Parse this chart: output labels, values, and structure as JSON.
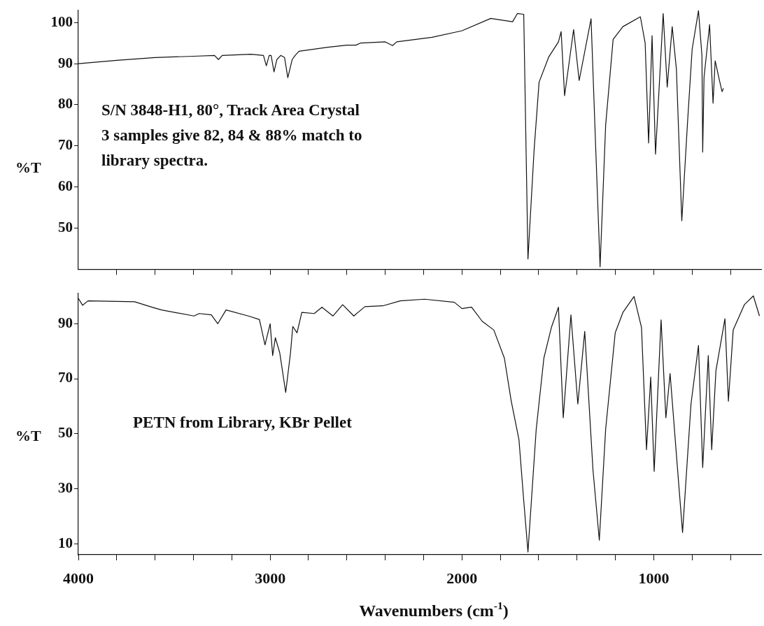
{
  "chart_data": [
    {
      "type": "line",
      "ylabel": "%T",
      "tick_labels": "y",
      "annotations": [
        "S/N 3848-H1, 80°, Track Area Crystal\n3 samples give 82, 84 & 88% match to\nlibrary spectra."
      ],
      "xlim": [
        4000,
        440
      ],
      "ylim": [
        40,
        103
      ],
      "xticks": [
        {
          "value": 3800,
          "label": null
        },
        {
          "value": 3600,
          "label": null
        },
        {
          "value": 3400,
          "label": null
        },
        {
          "value": 3200,
          "label": null
        },
        {
          "value": 3000,
          "label": null
        },
        {
          "value": 2800,
          "label": null
        },
        {
          "value": 2600,
          "label": null
        },
        {
          "value": 2400,
          "label": null
        },
        {
          "value": 2200,
          "label": null
        },
        {
          "value": 2000,
          "label": null
        },
        {
          "value": 1800,
          "label": null
        },
        {
          "value": 1600,
          "label": null
        },
        {
          "value": 1400,
          "label": null
        },
        {
          "value": 1200,
          "label": null
        },
        {
          "value": 1000,
          "label": null
        },
        {
          "value": 800,
          "label": null
        },
        {
          "value": 600,
          "label": null
        }
      ],
      "yticks": [
        50,
        60,
        70,
        80,
        90,
        100
      ],
      "series": [
        {
          "color": "#111111",
          "x": [
            4000,
            3800,
            3600,
            3400,
            3290,
            3270,
            3250,
            3100,
            3035,
            3020,
            3005,
            2995,
            2980,
            2965,
            2945,
            2925,
            2908,
            2885,
            2870,
            2850,
            2700,
            2600,
            2553,
            2530,
            2400,
            2362,
            2340,
            2156,
            2000,
            1850,
            1736,
            1711,
            1678,
            1656,
            1624,
            1598,
            1548,
            1497,
            1483,
            1465,
            1418,
            1389,
            1327,
            1302,
            1280,
            1251,
            1212,
            1161,
            1070,
            1045,
            1027,
            1009,
            991,
            951,
            930,
            904,
            882,
            854,
            825,
            800,
            767,
            749,
            745,
            738,
            709,
            691,
            680,
            658,
            644,
            637
          ],
          "values": [
            90,
            90.8,
            91.5,
            91.8,
            92,
            91,
            92,
            92.3,
            92,
            89.5,
            92,
            92,
            88,
            91,
            92,
            91.5,
            86.6,
            91,
            92,
            93,
            94,
            94.5,
            94.5,
            95,
            95.3,
            94.4,
            95.3,
            96.4,
            98,
            101,
            100.2,
            102.2,
            102,
            42.5,
            69,
            85.5,
            91.6,
            95.3,
            97.8,
            82.2,
            98.3,
            85.9,
            100.9,
            68.5,
            40.6,
            75,
            95.9,
            99,
            101.4,
            95,
            70.7,
            96.8,
            68,
            102.2,
            84.3,
            99,
            88.6,
            51.8,
            75,
            93.5,
            102.9,
            92,
            68.5,
            86.7,
            99.5,
            80.4,
            90.7,
            86,
            83.2,
            84
          ]
        }
      ]
    },
    {
      "type": "line",
      "ylabel": "%T",
      "xlabel": "Wavenumbers (cm$^{-1}$)",
      "annotations": [
        "PETN from Library, KBr Pellet"
      ],
      "xlim": [
        4000,
        440
      ],
      "ylim": [
        6,
        101
      ],
      "xticks": [
        4000,
        {
          "value": 3800,
          "label": null
        },
        {
          "value": 3600,
          "label": null
        },
        {
          "value": 3400,
          "label": null
        },
        {
          "value": 3200,
          "label": null
        },
        3000,
        {
          "value": 2800,
          "label": null
        },
        {
          "value": 2600,
          "label": null
        },
        {
          "value": 2400,
          "label": null
        },
        {
          "value": 2200,
          "label": null
        },
        2000,
        {
          "value": 1800,
          "label": null
        },
        {
          "value": 1600,
          "label": null
        },
        {
          "value": 1400,
          "label": null
        },
        {
          "value": 1200,
          "label": null
        },
        1000,
        {
          "value": 800,
          "label": null
        },
        {
          "value": 600,
          "label": null
        }
      ],
      "yticks": [
        10,
        30,
        50,
        70,
        90
      ],
      "series": [
        {
          "color": "#111111",
          "x": [
            4000,
            3978,
            3950,
            3800,
            3707,
            3617,
            3566,
            3397,
            3370,
            3307,
            3273,
            3230,
            3114,
            3056,
            3027,
            3000,
            2987,
            2973,
            2950,
            2919,
            2894,
            2882,
            2860,
            2835,
            2770,
            2730,
            2673,
            2622,
            2564,
            2506,
            2412,
            2322,
            2195,
            2040,
            2000,
            1950,
            1895,
            1834,
            1779,
            1743,
            1703,
            1678,
            1656,
            1638,
            1613,
            1573,
            1534,
            1497,
            1472,
            1432,
            1396,
            1360,
            1317,
            1284,
            1251,
            1201,
            1161,
            1103,
            1064,
            1038,
            1016,
            998,
            962,
            937,
            915,
            882,
            850,
            806,
            767,
            745,
            716,
            698,
            676,
            629,
            611,
            586,
            528,
            481,
            449
          ],
          "values": [
            99.2,
            96.7,
            98.3,
            98.1,
            98,
            96,
            95,
            92.8,
            93.7,
            93.2,
            90,
            95,
            92.8,
            91.5,
            82.3,
            90,
            78.4,
            84.9,
            79.4,
            65,
            79.4,
            89,
            86.7,
            94.1,
            93.7,
            96,
            92.8,
            96.9,
            92.8,
            96.2,
            96.5,
            98.3,
            98.9,
            97.8,
            95.5,
            96,
            90.9,
            87.7,
            77.5,
            61.8,
            47.9,
            25.7,
            7,
            25.7,
            51.6,
            77.5,
            88.6,
            96,
            55.8,
            93.2,
            60.8,
            87.2,
            36.8,
            11.3,
            51.6,
            86.7,
            94.1,
            99.9,
            88.6,
            44.2,
            70.6,
            36.3,
            91.4,
            55.8,
            71.9,
            42.3,
            14.1,
            60.8,
            82.1,
            37.7,
            78.4,
            44.2,
            72.9,
            91.8,
            61.8,
            87.7,
            96.9,
            100.1,
            92.8
          ]
        }
      ]
    }
  ]
}
